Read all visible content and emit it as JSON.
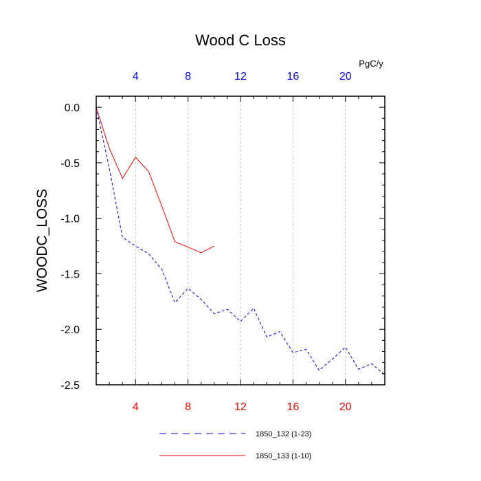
{
  "chart_data": {
    "type": "line",
    "title": "Wood C Loss",
    "ylabel": "WOODC_LOSS",
    "xlabel": "",
    "top_axis_unit": "PgC/y",
    "xlim": [
      1,
      23
    ],
    "ylim": [
      -2.5,
      0.1
    ],
    "x_ticks": [
      4,
      8,
      12,
      16,
      20
    ],
    "y_ticks": [
      0.0,
      -0.5,
      -1.0,
      -1.5,
      -2.0,
      -2.5
    ],
    "y_tick_labels": [
      "0.0",
      "-0.5",
      "-1.0",
      "-1.5",
      "-2.0",
      "-2.5"
    ],
    "bottom_tick_color": "#ff0000",
    "top_tick_color": "#0000ff",
    "grid": "vertical dashed at major x ticks",
    "series": [
      {
        "name": "1850_132 (1-23)",
        "color": "#0000ff",
        "style": "dashed",
        "x": [
          1,
          2,
          3,
          4,
          5,
          6,
          7,
          8,
          9,
          10,
          11,
          12,
          13,
          14,
          15,
          16,
          17,
          18,
          19,
          20,
          21,
          22,
          23
        ],
        "values": [
          0.0,
          -0.55,
          -1.17,
          -1.25,
          -1.32,
          -1.46,
          -1.76,
          -1.63,
          -1.73,
          -1.86,
          -1.82,
          -1.93,
          -1.81,
          -2.07,
          -2.02,
          -2.21,
          -2.18,
          -2.37,
          -2.27,
          -2.16,
          -2.36,
          -2.31,
          -2.41
        ]
      },
      {
        "name": "1850_133 (1-10)",
        "color": "#ff0000",
        "style": "solid",
        "x": [
          1,
          2,
          3,
          4,
          5,
          6,
          7,
          8,
          9,
          10
        ],
        "values": [
          0.0,
          -0.37,
          -0.64,
          -0.45,
          -0.58,
          -0.89,
          -1.21,
          -1.26,
          -1.31,
          -1.25
        ]
      }
    ],
    "legend_position": "bottom-center"
  }
}
